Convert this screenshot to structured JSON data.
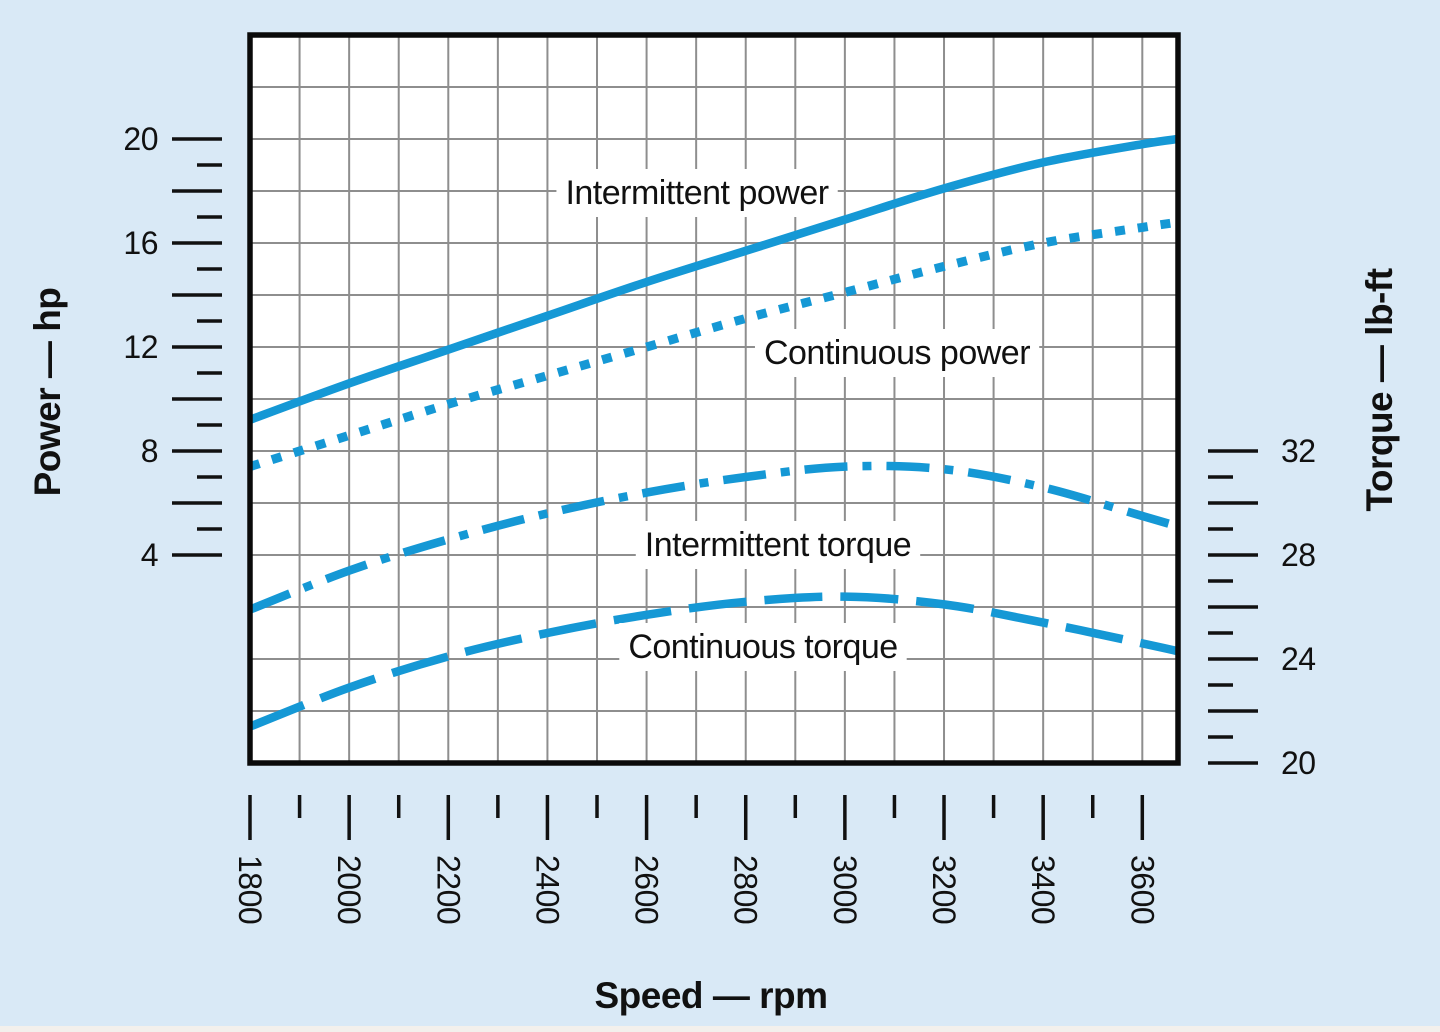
{
  "page": {
    "background_color": "#d9e9f6",
    "plot_background_color": "#ffffff",
    "frame_color": "#0a0a0a",
    "bottom_strip_color": "#f3f0ec"
  },
  "chart_data": {
    "type": "line",
    "title": "",
    "xlabel": "Speed — rpm",
    "ylabel_left": "Power — hp",
    "ylabel_right": "Torque — lb-ft",
    "series_color": "#1598d5",
    "grid": {
      "on": true,
      "color": "#8e8e8e",
      "x_step_rpm": 100,
      "y_step_hp": 2
    },
    "x_axis": {
      "min": 1800,
      "max": 3672,
      "minor_tick_step": 100,
      "major_tick_step": 200,
      "tick_from": 1800,
      "tick_to": 3600,
      "tick_labels": [
        "1800",
        "2000",
        "2200",
        "2400",
        "2600",
        "2800",
        "3000",
        "3200",
        "3400",
        "3600"
      ],
      "label_values": [
        1800,
        2000,
        2200,
        2400,
        2600,
        2800,
        3000,
        3200,
        3400,
        3600
      ]
    },
    "y_left_axis": {
      "min": -4,
      "max": 24,
      "minor_tick_step": 1,
      "major_tick_step": 2,
      "tick_from": 4,
      "tick_to": 20,
      "tick_labels": [
        "4",
        "8",
        "12",
        "16",
        "20"
      ],
      "label_values": [
        4,
        8,
        12,
        16,
        20
      ]
    },
    "y_right_axis": {
      "min": 20,
      "max": 48,
      "minor_tick_step": 1,
      "major_tick_step": 2,
      "tick_from": 20,
      "tick_to": 32,
      "tick_labels": [
        "20",
        "24",
        "28",
        "32"
      ],
      "label_values": [
        20,
        24,
        28,
        32
      ]
    },
    "x": [
      1800,
      2000,
      2200,
      2400,
      2600,
      2800,
      3000,
      3200,
      3400,
      3600,
      3672
    ],
    "series": [
      {
        "name": "Intermittent power",
        "axis": "left",
        "line_style": "solid",
        "values": [
          9.2,
          10.6,
          11.9,
          13.2,
          14.5,
          15.7,
          16.9,
          18.1,
          19.1,
          19.8,
          20.0
        ]
      },
      {
        "name": "Continuous power",
        "axis": "left",
        "line_style": "dotted",
        "values": [
          7.4,
          8.6,
          9.8,
          10.9,
          12.0,
          13.1,
          14.1,
          15.1,
          16.0,
          16.6,
          16.8
        ]
      },
      {
        "name": "Intermittent torque",
        "axis": "right",
        "line_style": "dash-dot",
        "values": [
          25.9,
          27.4,
          28.6,
          29.6,
          30.4,
          31.0,
          31.4,
          31.3,
          30.6,
          29.5,
          29.1
        ]
      },
      {
        "name": "Continuous torque",
        "axis": "right",
        "line_style": "long-dash",
        "values": [
          21.4,
          22.9,
          24.1,
          25.0,
          25.7,
          26.2,
          26.4,
          26.1,
          25.4,
          24.6,
          24.3
        ]
      }
    ],
    "legend_position": "inline-labels"
  }
}
